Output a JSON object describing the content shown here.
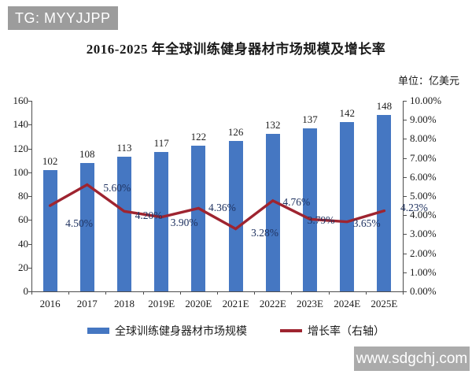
{
  "badge": {
    "text": "TG: MYYJJPP"
  },
  "unit_label": "单位：亿美元",
  "watermark": "www.sdgchj.com",
  "colors": {
    "bar": "#4577c2",
    "line": "#9e2430",
    "axis": "#4d4d4d",
    "growth_label_text": "#1f3260"
  },
  "chart_data": {
    "type": "bar",
    "title": "2016-2025 年全球训练健身器材市场规模及增长率",
    "categories": [
      "2016",
      "2017",
      "2018",
      "2019E",
      "2020E",
      "2021E",
      "2022E",
      "2023E",
      "2024E",
      "2025E"
    ],
    "series": [
      {
        "name": "全球训练健身器材市场规模",
        "type": "bar",
        "axis": "left",
        "values": [
          102,
          108,
          113,
          117,
          122,
          126,
          132,
          137,
          142,
          148
        ]
      },
      {
        "name": "增长率（右轴）",
        "type": "line",
        "axis": "right",
        "values": [
          4.5,
          5.6,
          4.2,
          3.9,
          4.36,
          3.28,
          4.76,
          3.79,
          3.65,
          4.23
        ],
        "point_labels": [
          "4.50%",
          "5.60%",
          "4.20%",
          "3.90%",
          "4.36%",
          "3.28%",
          "4.76%",
          "3.79%",
          "3.65%",
          "4.23%"
        ]
      }
    ],
    "left_axis": {
      "ticks": [
        0,
        20,
        40,
        60,
        80,
        100,
        120,
        140,
        160
      ],
      "range": [
        0,
        160
      ]
    },
    "right_axis": {
      "tick_labels": [
        "0.00%",
        "1.00%",
        "2.00%",
        "3.00%",
        "4.00%",
        "5.00%",
        "6.00%",
        "7.00%",
        "8.00%",
        "9.00%",
        "10.00%"
      ],
      "ticks": [
        0,
        1,
        2,
        3,
        4,
        5,
        6,
        7,
        8,
        9,
        10
      ],
      "range": [
        0,
        10
      ]
    },
    "grid": false,
    "legend_position": "bottom"
  }
}
